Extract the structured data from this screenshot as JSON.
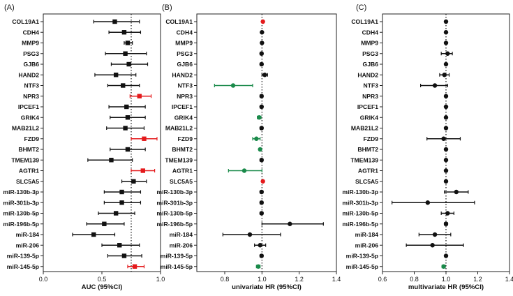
{
  "colors": {
    "black": "#111111",
    "red": "#e41a1c",
    "green": "#1a8a4a",
    "frame": "#222222"
  },
  "chart_data": [
    {
      "type": "forest",
      "panel_label": "(A)",
      "xlabel": "AUC (95%CI)",
      "xlim": [
        0.0,
        1.0
      ],
      "xticks": [
        0.0,
        0.5,
        1.0
      ],
      "xtick_labels": [
        "0.0",
        "0.5",
        "1.0"
      ],
      "reference_line": 0.75,
      "marker": "square",
      "categories": [
        "COL19A1",
        "CDH4",
        "MMP9",
        "PSG3",
        "GJB6",
        "HAND2",
        "NTF3",
        "NPR3",
        "IPCEF1",
        "GRIK4",
        "MAB21L2",
        "FZD9",
        "BHMT2",
        "TMEM139",
        "AGTR1",
        "SLC5A5",
        "miR-130b-3p",
        "miR-301b-3p",
        "miR-130b-5p",
        "miR-196b-5p",
        "miR-184",
        "miR-206",
        "miR-139-5p",
        "miR-145-5p"
      ],
      "estimate": [
        0.61,
        0.69,
        0.72,
        0.7,
        0.73,
        0.62,
        0.68,
        0.82,
        0.71,
        0.72,
        0.7,
        0.86,
        0.72,
        0.58,
        0.85,
        0.77,
        0.67,
        0.67,
        0.62,
        0.52,
        0.43,
        0.65,
        0.69,
        0.78
      ],
      "lower": [
        0.43,
        0.56,
        0.69,
        0.53,
        0.58,
        0.44,
        0.55,
        0.74,
        0.56,
        0.57,
        0.54,
        0.75,
        0.57,
        0.38,
        0.75,
        0.67,
        0.52,
        0.52,
        0.47,
        0.37,
        0.25,
        0.5,
        0.55,
        0.72
      ],
      "upper": [
        0.82,
        0.83,
        0.76,
        0.88,
        0.89,
        0.79,
        0.82,
        0.92,
        0.87,
        0.87,
        0.86,
        0.97,
        0.87,
        0.76,
        0.95,
        0.88,
        0.83,
        0.83,
        0.78,
        0.69,
        0.61,
        0.82,
        0.84,
        0.86
      ],
      "point_color": [
        "black",
        "black",
        "black",
        "black",
        "black",
        "black",
        "black",
        "red",
        "black",
        "black",
        "black",
        "red",
        "black",
        "black",
        "red",
        "black",
        "black",
        "black",
        "black",
        "black",
        "black",
        "black",
        "black",
        "red"
      ]
    },
    {
      "type": "forest",
      "panel_label": "(B)",
      "xlabel": "univariate HR (95%CI)",
      "xlim": [
        0.65,
        1.4
      ],
      "xticks": [
        0.8,
        1.0,
        1.2,
        1.4
      ],
      "xtick_labels": [
        "0.8",
        "1.0",
        "1.2",
        "1.4"
      ],
      "reference_line": 1.0,
      "marker": "circle",
      "categories": [
        "COL19A1",
        "CDH4",
        "MMP9",
        "PSG3",
        "GJB6",
        "HAND2",
        "NTF3",
        "NPR3",
        "IPCEF1",
        "GRIK4",
        "MAB21L2",
        "FZD9",
        "BHMT2",
        "TMEM139",
        "AGTR1",
        "SLC5A5",
        "miR-130b-3p",
        "miR-301b-3p",
        "miR-130b-5p",
        "miR-196b-5p",
        "miR-184",
        "miR-206",
        "miR-139-5p",
        "miR-145-5p"
      ],
      "estimate": [
        1.005,
        1.0,
        1.0,
        0.998,
        0.998,
        1.015,
        0.845,
        0.998,
        0.998,
        0.985,
        0.998,
        0.97,
        0.99,
        0.998,
        0.905,
        1.005,
        0.998,
        0.998,
        0.998,
        1.15,
        0.935,
        0.99,
        0.998,
        0.98
      ],
      "lower": [
        1.0,
        0.995,
        0.995,
        0.99,
        0.99,
        1.0,
        0.745,
        0.99,
        0.99,
        0.975,
        0.99,
        0.95,
        0.985,
        0.99,
        0.82,
        1.0,
        0.99,
        0.99,
        0.99,
        1.0,
        0.79,
        0.96,
        0.99,
        0.97
      ],
      "upper": [
        1.01,
        1.005,
        1.005,
        1.005,
        1.005,
        1.03,
        0.95,
        1.005,
        1.005,
        0.995,
        1.005,
        0.99,
        0.995,
        1.005,
        1.0,
        1.01,
        1.005,
        1.005,
        1.005,
        1.33,
        1.1,
        1.02,
        1.005,
        0.99
      ],
      "point_color": [
        "red",
        "black",
        "black",
        "black",
        "black",
        "black",
        "green",
        "black",
        "black",
        "green",
        "black",
        "green",
        "green",
        "black",
        "green",
        "red",
        "black",
        "black",
        "black",
        "black",
        "black",
        "black",
        "black",
        "green"
      ]
    },
    {
      "type": "forest",
      "panel_label": "(C)",
      "xlabel": "multivariate HR (95%CI)",
      "xlim": [
        0.6,
        1.4
      ],
      "xticks": [
        0.6,
        0.8,
        1.0,
        1.2,
        1.4
      ],
      "xtick_labels": [
        "0.6",
        "0.8",
        "1.0",
        "1.2",
        "1.4"
      ],
      "reference_line": 1.0,
      "marker": "circle",
      "categories": [
        "COL19A1",
        "CDH4",
        "MMP9",
        "PSG3",
        "GJB6",
        "HAND2",
        "NTF3",
        "NPR3",
        "IPCEF1",
        "GRIK4",
        "MAB21L2",
        "FZD9",
        "BHMT2",
        "TMEM139",
        "AGTR1",
        "SLC5A5",
        "miR-130b-3p",
        "miR-301b-3p",
        "miR-130b-5p",
        "miR-196b-5p",
        "miR-184",
        "miR-206",
        "miR-139-5p",
        "miR-145-5p"
      ],
      "estimate": [
        1.0,
        1.0,
        1.0,
        1.01,
        1.0,
        0.99,
        0.93,
        1.0,
        1.0,
        1.0,
        1.0,
        0.985,
        1.0,
        1.0,
        1.0,
        1.0,
        1.065,
        0.885,
        1.01,
        1.0,
        0.93,
        0.915,
        1.0,
        0.985
      ],
      "lower": [
        0.995,
        0.995,
        0.995,
        0.97,
        0.995,
        0.96,
        0.84,
        0.995,
        0.995,
        0.995,
        0.995,
        0.88,
        0.995,
        0.995,
        0.995,
        0.995,
        0.99,
        0.66,
        0.97,
        0.99,
        0.83,
        0.75,
        0.995,
        0.975
      ],
      "upper": [
        1.005,
        1.005,
        1.005,
        1.04,
        1.005,
        1.02,
        1.01,
        1.005,
        1.005,
        1.005,
        1.005,
        1.09,
        1.005,
        1.005,
        1.005,
        1.005,
        1.14,
        1.18,
        1.05,
        1.01,
        1.03,
        1.11,
        1.005,
        0.995
      ],
      "point_color": [
        "black",
        "black",
        "black",
        "black",
        "black",
        "black",
        "black",
        "black",
        "black",
        "black",
        "black",
        "black",
        "black",
        "black",
        "black",
        "black",
        "black",
        "black",
        "black",
        "black",
        "black",
        "black",
        "black",
        "green"
      ]
    }
  ]
}
